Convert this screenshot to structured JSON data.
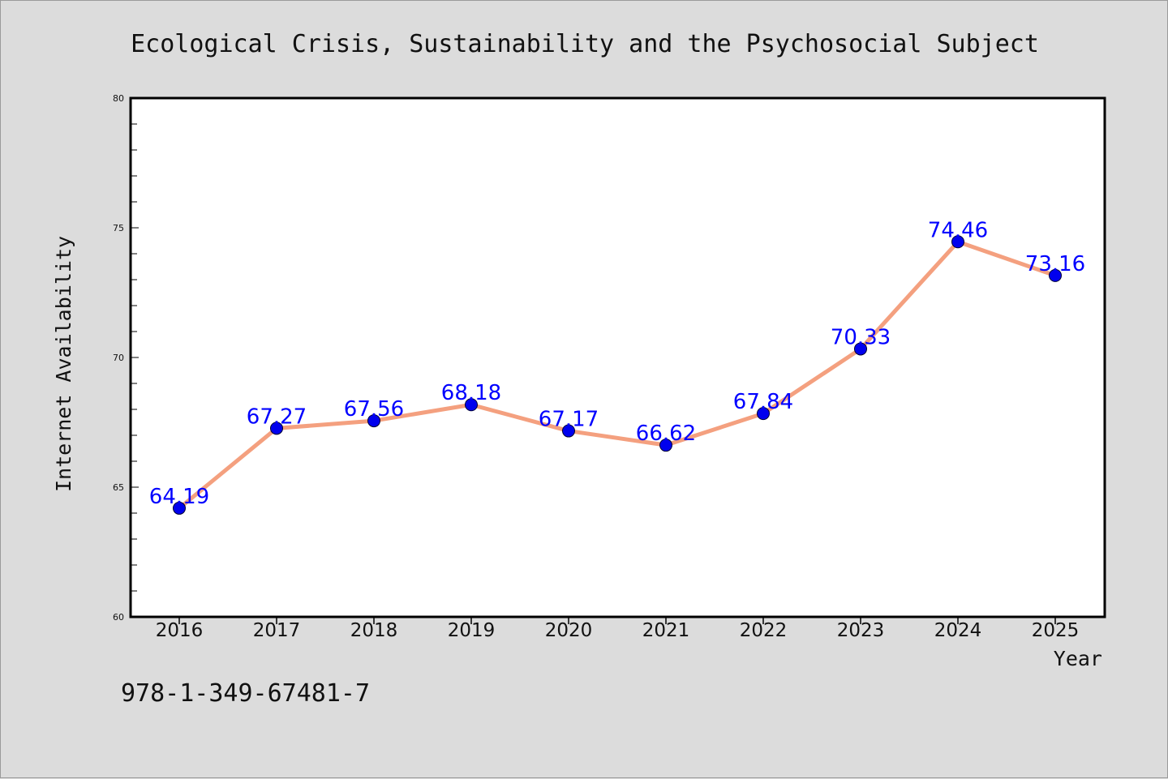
{
  "chart_data": {
    "type": "line",
    "title": "Ecological Crisis, Sustainability and the Psychosocial Subject",
    "xlabel": "Year",
    "ylabel": "Internet Availability",
    "categories": [
      "2016",
      "2017",
      "2018",
      "2019",
      "2020",
      "2021",
      "2022",
      "2023",
      "2024",
      "2025"
    ],
    "series": [
      {
        "values": [
          64.19,
          67.27,
          67.56,
          68.18,
          67.17,
          66.62,
          67.84,
          70.33,
          74.46,
          73.16
        ],
        "data_labels": [
          "64.19",
          "67.27",
          "67.56",
          "68.18",
          "67.17",
          "66.62",
          "67.84",
          "70.33",
          "74.46",
          "73.16"
        ]
      }
    ],
    "ylim": [
      60,
      80
    ],
    "y_ticks": [
      "60",
      "65",
      "70",
      "75",
      "80"
    ],
    "grid": false,
    "legend": "none",
    "colors": {
      "line": "#f4a07f",
      "marker": "#0000ee",
      "data_label": "#0000ff",
      "background": "#dcdcdc",
      "plot_background": "#ffffff"
    }
  },
  "footnote": "978-1-349-67481-7"
}
